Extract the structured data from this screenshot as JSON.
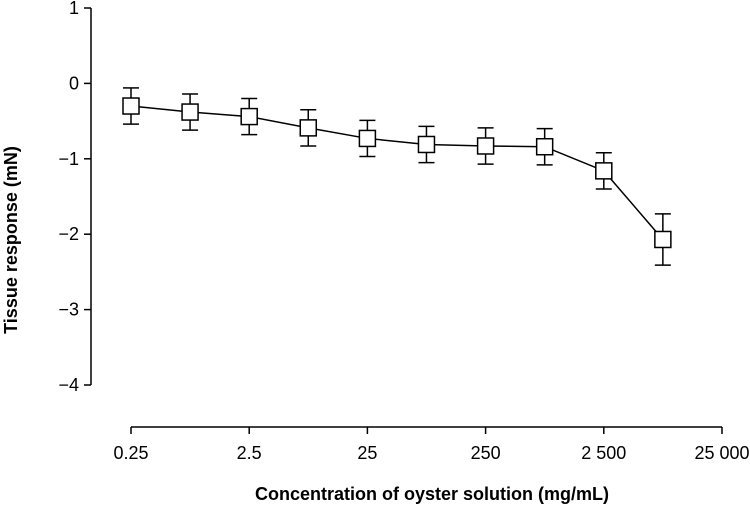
{
  "chart_data": {
    "type": "line",
    "title": "",
    "xlabel": "Concentration of oyster solution (mg/mL)",
    "ylabel": "Tissue response (mN)",
    "x_scale": "log10",
    "xlim": [
      0.25,
      25000
    ],
    "ylim": [
      -4,
      1
    ],
    "x_ticks": [
      0.25,
      2.5,
      25,
      250,
      2500,
      25000
    ],
    "x_tick_labels": [
      "0.25",
      "2.5",
      "25",
      "250",
      "2 500",
      "25 000"
    ],
    "y_ticks": [
      1,
      0,
      -1,
      -2,
      -3,
      -4
    ],
    "y_tick_labels": [
      "1",
      "0",
      "−1",
      "−2",
      "−3",
      "−4"
    ],
    "grid": false,
    "legend": "none",
    "series": [
      {
        "marker": "open-square",
        "color": "#000000",
        "x": [
          0.25,
          0.79,
          2.5,
          7.9,
          25,
          79,
          250,
          790,
          2500,
          7900
        ],
        "y": [
          -0.3,
          -0.38,
          -0.44,
          -0.59,
          -0.73,
          -0.81,
          -0.83,
          -0.84,
          -1.16,
          -2.07
        ],
        "error": [
          0.24,
          0.24,
          0.24,
          0.24,
          0.24,
          0.24,
          0.24,
          0.24,
          0.24,
          0.34
        ]
      }
    ]
  }
}
